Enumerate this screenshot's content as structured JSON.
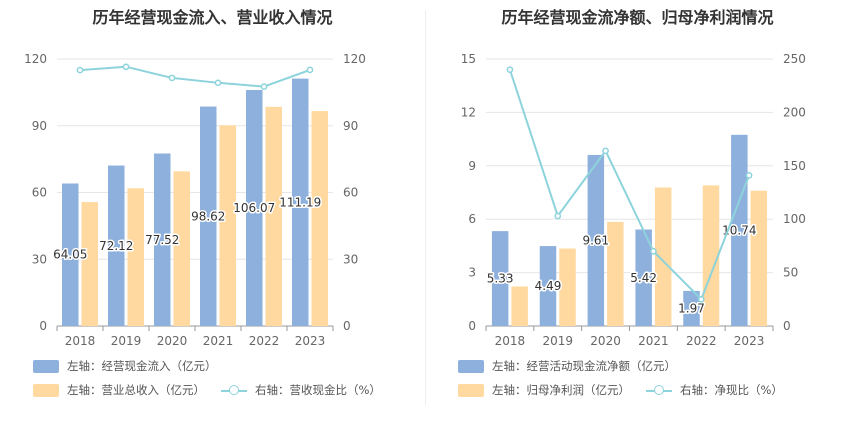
{
  "charts": [
    {
      "id": "left",
      "title": "历年经营现金流入、营业收入情况",
      "categories": [
        "2018",
        "2019",
        "2020",
        "2021",
        "2022",
        "2023"
      ],
      "left_axis": {
        "min": 0,
        "max": 120,
        "ticks": [
          "0",
          "30",
          "60",
          "90",
          "120"
        ]
      },
      "right_axis": {
        "min": 0,
        "max": 120,
        "ticks": [
          "0",
          "30",
          "60",
          "90",
          "120"
        ]
      },
      "series": [
        {
          "name": "左轴：经营现金流入（亿元）",
          "type": "bar",
          "axis": "left",
          "color": "#8eb0dd",
          "values": [
            64.05,
            72.12,
            77.52,
            98.62,
            106.07,
            111.19
          ],
          "labels": [
            "64.05",
            "72.12",
            "77.52",
            "98.62",
            "106.07",
            "111.19"
          ]
        },
        {
          "name": "左轴：营业总收入（亿元）",
          "type": "bar",
          "axis": "left",
          "color": "#ffd9a0",
          "values": [
            55.7,
            61.9,
            69.5,
            90.2,
            98.5,
            96.6
          ]
        },
        {
          "name": "右轴：营收现金比（%）",
          "type": "line",
          "axis": "right",
          "color": "#8dd3dc",
          "values": [
            115.0,
            116.5,
            111.5,
            109.3,
            107.6,
            115.1
          ]
        }
      ],
      "legend": [
        [
          "左轴：经营现金流入（亿元）"
        ],
        [
          "左轴：营业总收入（亿元）",
          "右轴：营收现金比（%）"
        ]
      ]
    },
    {
      "id": "right",
      "title": "历年经营现金流净额、归母净利润情况",
      "categories": [
        "2018",
        "2019",
        "2020",
        "2021",
        "2022",
        "2023"
      ],
      "left_axis": {
        "min": 0,
        "max": 15,
        "ticks": [
          "0",
          "3",
          "6",
          "9",
          "12",
          "15"
        ]
      },
      "right_axis": {
        "min": 0,
        "max": 250,
        "ticks": [
          "0",
          "50",
          "100",
          "150",
          "200",
          "250"
        ]
      },
      "series": [
        {
          "name": "左轴：经营活动现金流净额（亿元）",
          "type": "bar",
          "axis": "left",
          "color": "#8eb0dd",
          "values": [
            5.33,
            4.49,
            9.61,
            5.42,
            1.97,
            10.74
          ],
          "labels": [
            "5.33",
            "4.49",
            "9.61",
            "5.42",
            "1.97",
            "10.74"
          ]
        },
        {
          "name": "左轴：归母净利润（亿元）",
          "type": "bar",
          "axis": "left",
          "color": "#ffd9a0",
          "values": [
            2.22,
            4.35,
            5.85,
            7.78,
            7.9,
            7.6
          ]
        },
        {
          "name": "右轴：净现比（%）",
          "type": "line",
          "axis": "right",
          "color": "#8dd3dc",
          "values": [
            240.0,
            103.0,
            164.0,
            70.0,
            25.0,
            141.0
          ]
        }
      ],
      "legend": [
        [
          "左轴：经营活动现金流净额（亿元）"
        ],
        [
          "左轴：归母净利润（亿元）",
          "右轴：净现比（%）"
        ]
      ]
    }
  ]
}
